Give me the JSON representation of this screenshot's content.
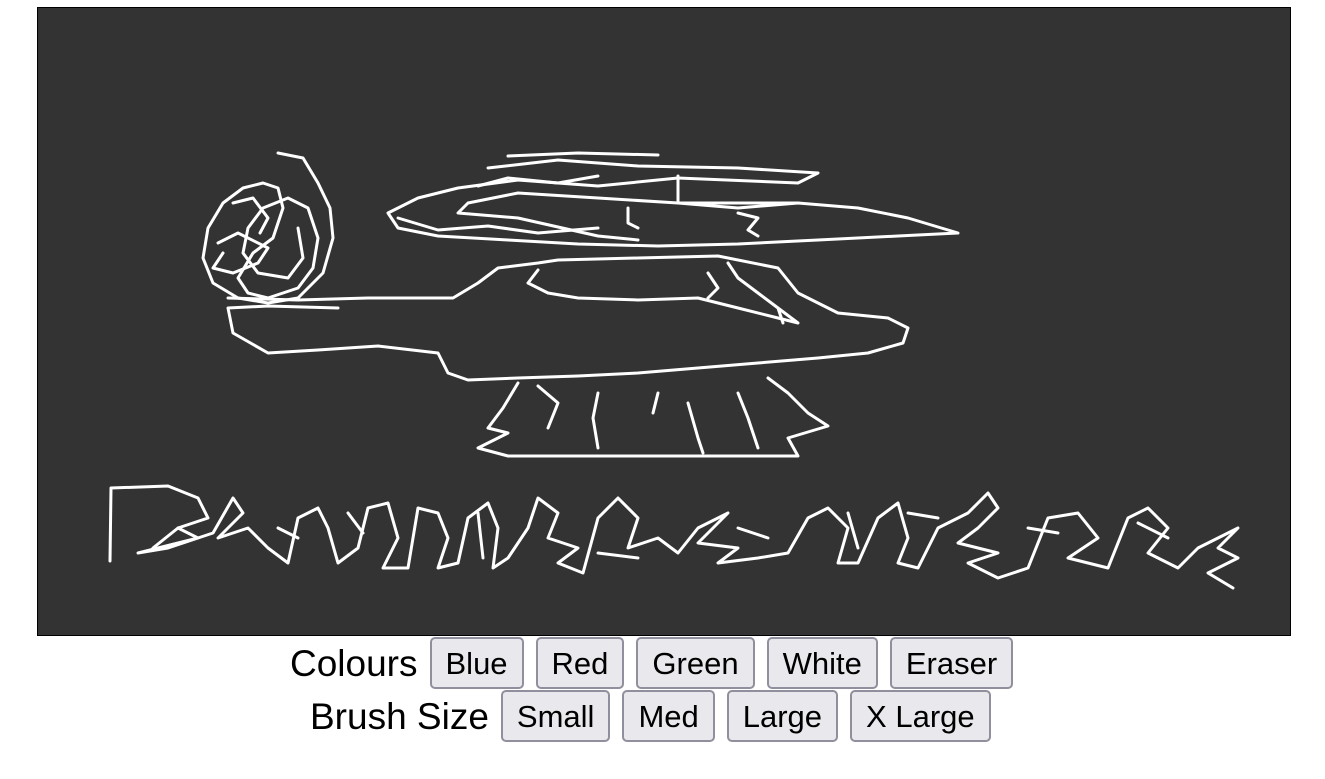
{
  "canvas": {
    "background": "#333333",
    "stroke_color": "#ffffff"
  },
  "colours": {
    "label": "Colours",
    "buttons": [
      "Blue",
      "Red",
      "Green",
      "White",
      "Eraser"
    ]
  },
  "brush_size": {
    "label": "Brush Size",
    "buttons": [
      "Small",
      "Med",
      "Large",
      "X Large"
    ]
  }
}
